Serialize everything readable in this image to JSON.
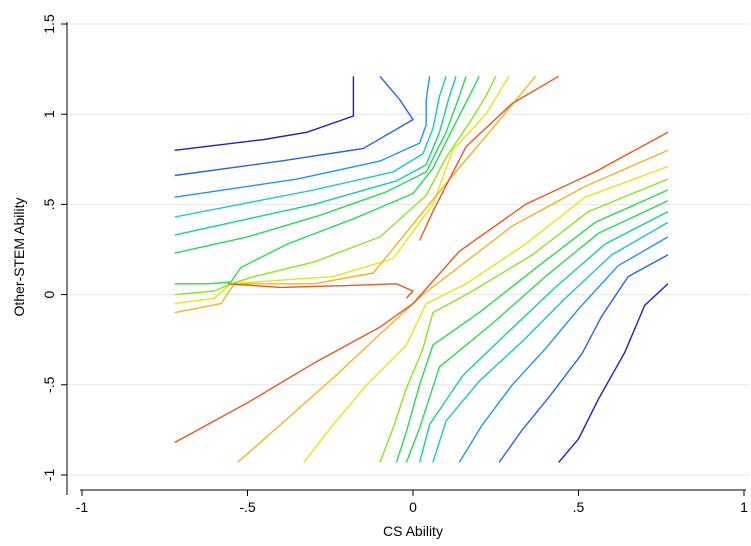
{
  "chart_data": {
    "type": "contour",
    "title": "",
    "xlabel": "CS Ability",
    "ylabel": "Other-STEM Ability",
    "xlim": [
      -1,
      1
    ],
    "ylim": [
      -1.1,
      1.5
    ],
    "xticks": [
      -1,
      -0.5,
      0,
      0.5,
      1
    ],
    "xtick_labels": [
      "-1",
      "-.5",
      "0",
      ".5",
      "1"
    ],
    "yticks": [
      -1,
      -0.5,
      0,
      0.5,
      1,
      1.5
    ],
    "ytick_labels": [
      "-1",
      "-.5",
      "0",
      ".5",
      "1",
      "1.5"
    ],
    "grid": "horizontal",
    "legend": "none",
    "series": [
      {
        "color": "#1e1ec8",
        "points": [
          [
            -0.72,
            0.8
          ],
          [
            -0.45,
            0.86
          ],
          [
            -0.32,
            0.9
          ],
          [
            -0.18,
            0.99
          ],
          [
            -0.18,
            1.21
          ]
        ]
      },
      {
        "color": "#1e1ec8",
        "points": [
          [
            0.44,
            -0.93
          ],
          [
            0.5,
            -0.8
          ],
          [
            0.56,
            -0.58
          ],
          [
            0.64,
            -0.32
          ],
          [
            0.7,
            -0.06
          ],
          [
            0.77,
            0.06
          ]
        ]
      },
      {
        "color": "#2864e6",
        "points": [
          [
            -0.72,
            0.66
          ],
          [
            -0.4,
            0.74
          ],
          [
            -0.15,
            0.81
          ],
          [
            0.0,
            0.97
          ],
          [
            -0.04,
            1.08
          ],
          [
            -0.1,
            1.21
          ]
        ]
      },
      {
        "color": "#2864e6",
        "points": [
          [
            0.26,
            -0.93
          ],
          [
            0.33,
            -0.75
          ],
          [
            0.41,
            -0.57
          ],
          [
            0.51,
            -0.33
          ],
          [
            0.57,
            -0.12
          ],
          [
            0.65,
            0.1
          ],
          [
            0.77,
            0.22
          ]
        ]
      },
      {
        "color": "#1e96f0",
        "points": [
          [
            -0.72,
            0.54
          ],
          [
            -0.35,
            0.64
          ],
          [
            -0.1,
            0.74
          ],
          [
            0.02,
            0.84
          ],
          [
            0.04,
            0.94
          ],
          [
            0.04,
            1.08
          ],
          [
            0.05,
            1.21
          ]
        ]
      },
      {
        "color": "#1e96f0",
        "points": [
          [
            0.14,
            -0.93
          ],
          [
            0.21,
            -0.72
          ],
          [
            0.3,
            -0.5
          ],
          [
            0.4,
            -0.3
          ],
          [
            0.5,
            -0.08
          ],
          [
            0.62,
            0.16
          ],
          [
            0.77,
            0.32
          ]
        ]
      },
      {
        "color": "#14c8d2",
        "points": [
          [
            -0.72,
            0.43
          ],
          [
            -0.3,
            0.58
          ],
          [
            -0.06,
            0.68
          ],
          [
            0.03,
            0.78
          ],
          [
            0.06,
            0.92
          ],
          [
            0.08,
            1.1
          ],
          [
            0.1,
            1.21
          ]
        ]
      },
      {
        "color": "#14c8d2",
        "points": [
          [
            0.06,
            -0.93
          ],
          [
            0.1,
            -0.7
          ],
          [
            0.2,
            -0.48
          ],
          [
            0.33,
            -0.26
          ],
          [
            0.46,
            -0.02
          ],
          [
            0.6,
            0.22
          ],
          [
            0.77,
            0.4
          ]
        ]
      },
      {
        "color": "#14d296",
        "points": [
          [
            -0.72,
            0.33
          ],
          [
            -0.3,
            0.5
          ],
          [
            -0.05,
            0.63
          ],
          [
            0.04,
            0.72
          ],
          [
            0.08,
            0.9
          ],
          [
            0.11,
            1.1
          ],
          [
            0.13,
            1.21
          ]
        ]
      },
      {
        "color": "#14d296",
        "points": [
          [
            0.02,
            -0.93
          ],
          [
            0.05,
            -0.72
          ],
          [
            0.15,
            -0.45
          ],
          [
            0.28,
            -0.22
          ],
          [
            0.43,
            0.04
          ],
          [
            0.58,
            0.28
          ],
          [
            0.77,
            0.46
          ]
        ]
      },
      {
        "color": "#28dc50",
        "points": [
          [
            -0.72,
            0.23
          ],
          [
            -0.5,
            0.32
          ],
          [
            -0.28,
            0.44
          ],
          [
            -0.08,
            0.57
          ],
          [
            0.04,
            0.68
          ],
          [
            0.1,
            0.9
          ],
          [
            0.14,
            1.1
          ],
          [
            0.16,
            1.21
          ]
        ]
      },
      {
        "color": "#28dc50",
        "points": [
          [
            -0.02,
            -0.93
          ],
          [
            0.02,
            -0.74
          ],
          [
            0.08,
            -0.4
          ],
          [
            0.24,
            -0.16
          ],
          [
            0.4,
            0.1
          ],
          [
            0.56,
            0.34
          ],
          [
            0.77,
            0.52
          ]
        ]
      },
      {
        "color": "#28dc50",
        "points": [
          [
            -0.72,
            0.06
          ],
          [
            -0.62,
            0.06
          ],
          [
            -0.55,
            0.07
          ],
          [
            -0.52,
            0.15
          ],
          [
            -0.38,
            0.28
          ],
          [
            -0.18,
            0.42
          ],
          [
            0.0,
            0.56
          ],
          [
            0.06,
            0.7
          ],
          [
            0.12,
            0.92
          ],
          [
            0.17,
            1.1
          ],
          [
            0.2,
            1.21
          ]
        ]
      },
      {
        "color": "#28dc50",
        "points": [
          [
            -0.05,
            -0.93
          ],
          [
            -0.02,
            -0.76
          ],
          [
            0.02,
            -0.5
          ],
          [
            0.06,
            -0.28
          ],
          [
            0.2,
            -0.1
          ],
          [
            0.38,
            0.16
          ],
          [
            0.55,
            0.4
          ],
          [
            0.77,
            0.58
          ]
        ]
      },
      {
        "color": "#8ce61e",
        "points": [
          [
            -0.72,
            0.0
          ],
          [
            -0.6,
            0.02
          ],
          [
            -0.55,
            0.06
          ],
          [
            -0.48,
            0.1
          ],
          [
            -0.3,
            0.18
          ],
          [
            -0.1,
            0.32
          ],
          [
            0.04,
            0.55
          ],
          [
            0.1,
            0.76
          ],
          [
            0.18,
            0.98
          ],
          [
            0.22,
            1.1
          ],
          [
            0.25,
            1.21
          ]
        ]
      },
      {
        "color": "#8ce61e",
        "points": [
          [
            -0.1,
            -0.93
          ],
          [
            -0.06,
            -0.74
          ],
          [
            -0.02,
            -0.52
          ],
          [
            0.03,
            -0.3
          ],
          [
            0.06,
            -0.1
          ],
          [
            0.18,
            0.02
          ],
          [
            0.36,
            0.22
          ],
          [
            0.53,
            0.46
          ],
          [
            0.77,
            0.64
          ]
        ]
      },
      {
        "color": "#e6e614",
        "points": [
          [
            -0.72,
            -0.05
          ],
          [
            -0.6,
            -0.02
          ],
          [
            -0.55,
            0.06
          ],
          [
            -0.4,
            0.08
          ],
          [
            -0.24,
            0.1
          ],
          [
            -0.06,
            0.2
          ],
          [
            0.06,
            0.5
          ],
          [
            0.12,
            0.8
          ],
          [
            0.22,
            1.0
          ],
          [
            0.29,
            1.21
          ]
        ]
      },
      {
        "color": "#e6e614",
        "points": [
          [
            -0.33,
            -0.93
          ],
          [
            -0.25,
            -0.74
          ],
          [
            -0.14,
            -0.5
          ],
          [
            -0.02,
            -0.28
          ],
          [
            0.04,
            -0.05
          ],
          [
            0.16,
            0.06
          ],
          [
            0.34,
            0.28
          ],
          [
            0.52,
            0.54
          ],
          [
            0.77,
            0.71
          ]
        ]
      },
      {
        "color": "#f5b41e",
        "points": [
          [
            -0.72,
            -0.1
          ],
          [
            -0.58,
            -0.05
          ],
          [
            -0.54,
            0.06
          ],
          [
            -0.3,
            0.06
          ],
          [
            -0.12,
            0.12
          ],
          [
            0.04,
            0.48
          ],
          [
            0.12,
            0.66
          ],
          [
            0.24,
            0.92
          ],
          [
            0.37,
            1.21
          ]
        ]
      },
      {
        "color": "#f5b41e",
        "points": [
          [
            -0.53,
            -0.93
          ],
          [
            -0.4,
            -0.72
          ],
          [
            -0.24,
            -0.46
          ],
          [
            -0.1,
            -0.22
          ],
          [
            0.03,
            0.0
          ],
          [
            0.3,
            0.38
          ],
          [
            0.52,
            0.6
          ],
          [
            0.77,
            0.8
          ]
        ]
      },
      {
        "color": "#e65a1e",
        "points": [
          [
            -0.56,
            0.06
          ],
          [
            -0.4,
            0.04
          ],
          [
            -0.2,
            0.05
          ],
          [
            -0.05,
            0.06
          ],
          [
            0.0,
            0.02
          ],
          [
            -0.02,
            -0.02
          ]
        ]
      },
      {
        "color": "#e65a1e",
        "points": [
          [
            -0.72,
            -0.82
          ],
          [
            -0.5,
            -0.6
          ],
          [
            -0.3,
            -0.38
          ],
          [
            -0.1,
            -0.18
          ],
          [
            0.0,
            -0.05
          ],
          [
            0.14,
            0.24
          ],
          [
            0.34,
            0.5
          ],
          [
            0.55,
            0.68
          ],
          [
            0.77,
            0.9
          ]
        ]
      },
      {
        "color": "#e65a1e",
        "points": [
          [
            0.02,
            0.3
          ],
          [
            0.06,
            0.46
          ],
          [
            0.16,
            0.82
          ],
          [
            0.3,
            1.06
          ],
          [
            0.44,
            1.21
          ]
        ]
      }
    ]
  }
}
